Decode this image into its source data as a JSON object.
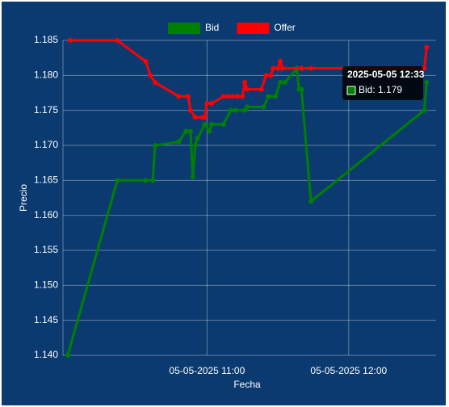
{
  "chart_data": {
    "type": "line",
    "x_label": "Fecha",
    "y_label": "Precio",
    "legend": "top",
    "grid": true,
    "xlim": [
      "2025-05-05 09:59",
      "2025-05-05 12:37"
    ],
    "xticks": [
      {
        "value": "2025-05-05 11:00",
        "label": "05-05-2025 11:00"
      },
      {
        "value": "2025-05-05 12:00",
        "label": "05-05-2025 12:00"
      }
    ],
    "ylim": [
      1.14,
      1.185
    ],
    "yticks": [
      {
        "value": 1.14,
        "label": "1.140"
      },
      1.145,
      {
        "value": 1.15,
        "label": "1.150"
      },
      1.155,
      {
        "value": 1.16,
        "label": "1.160"
      },
      1.165,
      {
        "value": 1.17,
        "label": "1.170"
      },
      1.175,
      {
        "value": 1.18,
        "label": "1.180"
      },
      1.185
    ],
    "series": [
      {
        "name": "Bid",
        "color": "#008000",
        "x": [
          "2025-05-05 10:01",
          "2025-05-05 10:22",
          "2025-05-05 10:34",
          "2025-05-05 10:37",
          "2025-05-05 10:38",
          "2025-05-05 10:48",
          "2025-05-05 10:51",
          "2025-05-05 10:53",
          "2025-05-05 10:54",
          "2025-05-05 10:55",
          "2025-05-05 10:56",
          "2025-05-05 10:59",
          "2025-05-05 11:01",
          "2025-05-05 11:02",
          "2025-05-05 11:07",
          "2025-05-05 11:10",
          "2025-05-05 11:12",
          "2025-05-05 11:16",
          "2025-05-05 11:17",
          "2025-05-05 11:24",
          "2025-05-05 11:26",
          "2025-05-05 11:29",
          "2025-05-05 11:31",
          "2025-05-05 11:33",
          "2025-05-05 11:38",
          "2025-05-05 11:39",
          "2025-05-05 11:40",
          "2025-05-05 11:44",
          "2025-05-05 12:32",
          "2025-05-05 12:33"
        ],
        "values": [
          1.14,
          1.165,
          1.165,
          1.165,
          1.17,
          1.1705,
          1.172,
          1.172,
          1.1655,
          1.17,
          1.171,
          1.173,
          1.172,
          1.173,
          1.173,
          1.175,
          1.175,
          1.175,
          1.1755,
          1.1755,
          1.177,
          1.177,
          1.179,
          1.179,
          1.181,
          1.178,
          1.178,
          1.162,
          1.175,
          1.179
        ]
      },
      {
        "name": "Offer",
        "color": "#ff0000",
        "x": [
          "2025-05-05 10:02",
          "2025-05-05 10:22",
          "2025-05-05 10:34",
          "2025-05-05 10:36",
          "2025-05-05 10:38",
          "2025-05-05 10:48",
          "2025-05-05 10:52",
          "2025-05-05 10:53",
          "2025-05-05 10:55",
          "2025-05-05 10:58",
          "2025-05-05 10:59",
          "2025-05-05 11:00",
          "2025-05-05 11:02",
          "2025-05-05 11:07",
          "2025-05-05 11:09",
          "2025-05-05 11:11",
          "2025-05-05 11:13",
          "2025-05-05 11:15",
          "2025-05-05 11:16",
          "2025-05-05 11:17",
          "2025-05-05 11:23",
          "2025-05-05 11:25",
          "2025-05-05 11:27",
          "2025-05-05 11:28",
          "2025-05-05 11:30",
          "2025-05-05 11:31",
          "2025-05-05 11:32",
          "2025-05-05 11:40",
          "2025-05-05 11:44",
          "2025-05-05 12:32",
          "2025-05-05 12:33"
        ],
        "values": [
          1.185,
          1.185,
          1.182,
          1.18,
          1.179,
          1.177,
          1.177,
          1.175,
          1.174,
          1.174,
          1.174,
          1.176,
          1.176,
          1.177,
          1.177,
          1.177,
          1.177,
          1.177,
          1.179,
          1.178,
          1.178,
          1.18,
          1.18,
          1.181,
          1.181,
          1.182,
          1.181,
          1.181,
          1.181,
          1.181,
          1.184
        ]
      }
    ],
    "tooltip": {
      "title": "2025-05-05 12:33",
      "label": "Bid: 1.179"
    }
  }
}
